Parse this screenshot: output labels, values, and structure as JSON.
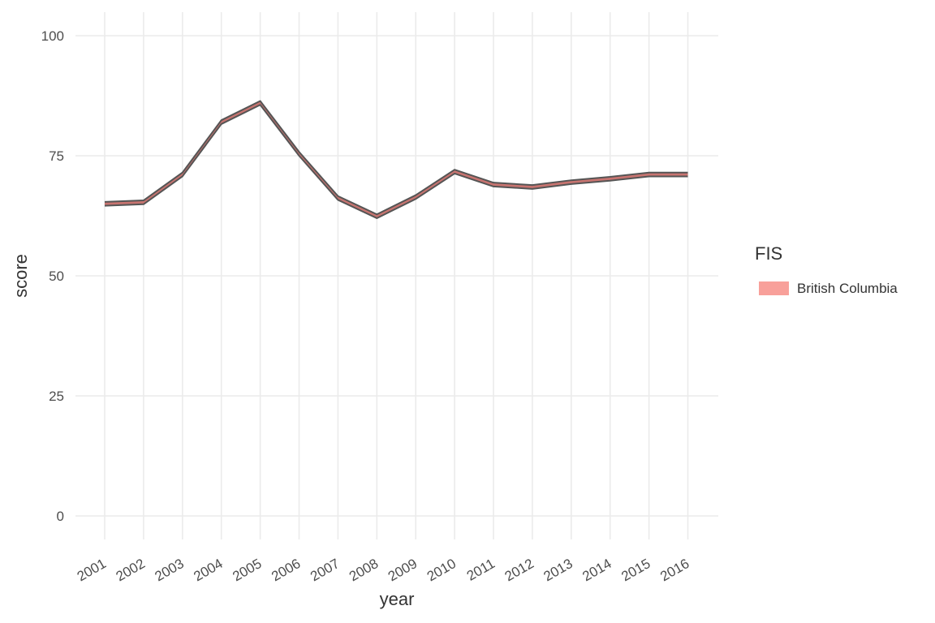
{
  "chart_data": {
    "type": "area",
    "title": "",
    "xlabel": "year",
    "ylabel": "score",
    "x": [
      2001,
      2002,
      2003,
      2004,
      2005,
      2006,
      2007,
      2008,
      2009,
      2010,
      2011,
      2012,
      2013,
      2014,
      2015,
      2016
    ],
    "x_tick_labels": [
      "2001",
      "2002",
      "2003",
      "2004",
      "2005",
      "2006",
      "2007",
      "2008",
      "2009",
      "2010",
      "2011",
      "2012",
      "2013",
      "2014",
      "2015",
      "2016"
    ],
    "y_ticks": [
      0,
      25,
      50,
      75,
      100
    ],
    "y_tick_labels": [
      "0",
      "25",
      "50",
      "75",
      "100"
    ],
    "ylim": [
      0,
      100
    ],
    "grid": true,
    "legend": {
      "title": "FIS",
      "placement": "right"
    },
    "series": [
      {
        "name": "British Columbia",
        "fill_color": "#f8a09a",
        "band_color": "#c87470",
        "outline_color": "#555555",
        "upper": [
          65.4,
          65.7,
          71.5,
          82.4,
          86.4,
          75.8,
          66.6,
          62.8,
          66.8,
          72.1,
          69.4,
          68.9,
          69.9,
          70.6,
          71.5,
          71.5
        ],
        "lower": [
          64.6,
          64.9,
          70.7,
          81.6,
          85.6,
          75.0,
          65.8,
          62.0,
          66.0,
          71.3,
          68.6,
          68.1,
          69.1,
          69.8,
          70.7,
          70.7
        ]
      }
    ]
  }
}
